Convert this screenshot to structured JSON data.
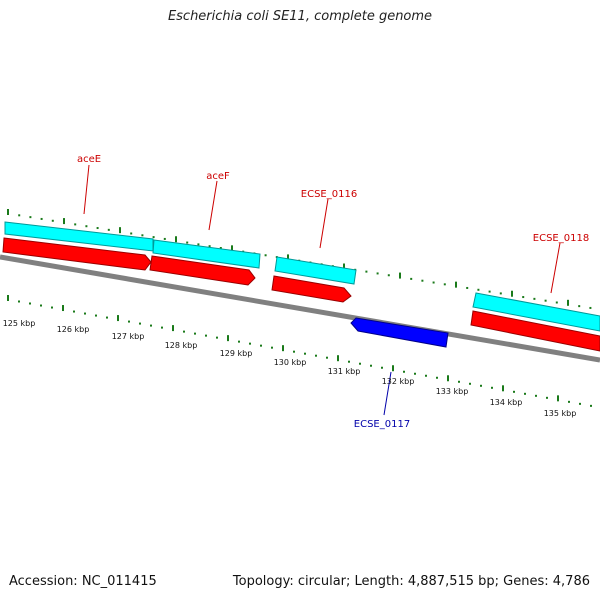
{
  "title": "Escherichia coli SE11, complete genome",
  "colors": {
    "background": "#ffffff",
    "backbone": "#808080",
    "forward_cds_outline": "#00ffff",
    "forward_cds": "#ff0000",
    "reverse_cds": "#0000ff",
    "ticks": "#1a7a1a",
    "forward_label": "#cc0000",
    "reverse_label": "#0000aa"
  },
  "ruler_labels": [
    "125 kbp",
    "126 kbp",
    "127 kbp",
    "128 kbp",
    "129 kbp",
    "130 kbp",
    "131 kbp",
    "132 kbp",
    "133 kbp",
    "134 kbp",
    "135 kbp"
  ],
  "features": [
    {
      "name": "aceE",
      "strand": "forward"
    },
    {
      "name": "aceF",
      "strand": "forward"
    },
    {
      "name": "ECSE_0116",
      "strand": "forward"
    },
    {
      "name": "ECSE_0118",
      "strand": "forward"
    },
    {
      "name": "ECSE_0117",
      "strand": "reverse"
    }
  ],
  "footer": {
    "accession": "Accession: NC_011415",
    "summary": "Topology: circular; Length: 4,887,515 bp; Genes: 4,786"
  }
}
